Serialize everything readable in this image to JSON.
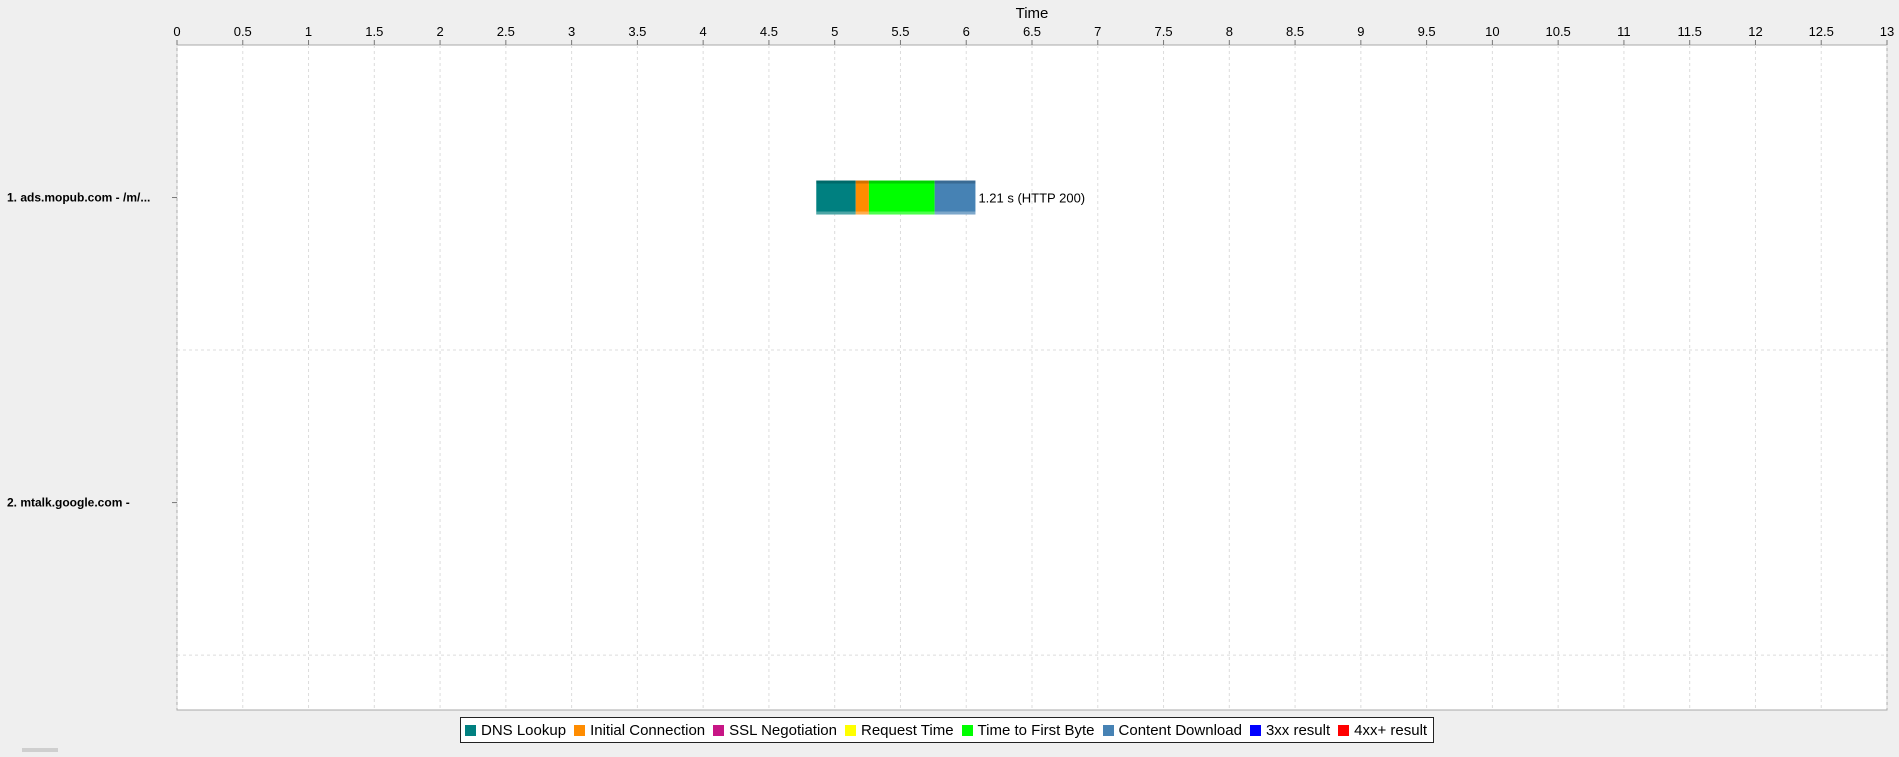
{
  "chart_data": {
    "type": "bar",
    "orientation": "horizontal",
    "subtype": "waterfall",
    "xlabel": "Time",
    "xlim": [
      0,
      13
    ],
    "xticks": [
      "0",
      "0.5",
      "1",
      "1.5",
      "2",
      "2.5",
      "3",
      "3.5",
      "4",
      "4.5",
      "5",
      "5.5",
      "6",
      "6.5",
      "7",
      "7.5",
      "8",
      "8.5",
      "9",
      "9.5",
      "10",
      "10.5",
      "11",
      "11.5",
      "12",
      "12.5",
      "13"
    ],
    "grid": true,
    "categories": [
      "1. ads.mopub.com - /m/...",
      "2. mtalk.google.com -"
    ],
    "requests": [
      {
        "label": "1. ads.mopub.com - /m/...",
        "segments": [
          {
            "phase": "DNS Lookup",
            "start": 4.86,
            "end": 5.16
          },
          {
            "phase": "Initial Connection",
            "start": 5.16,
            "end": 5.26
          },
          {
            "phase": "Time to First Byte",
            "start": 5.26,
            "end": 5.76
          },
          {
            "phase": "Content Download",
            "start": 5.76,
            "end": 6.07
          }
        ],
        "annotation": "1.21 s (HTTP 200)"
      },
      {
        "label": "2. mtalk.google.com -",
        "segments": [],
        "annotation": ""
      }
    ],
    "legend_position": "bottom",
    "legend": [
      {
        "name": "DNS Lookup",
        "color": "#008080"
      },
      {
        "name": "Initial Connection",
        "color": "#ff8c00"
      },
      {
        "name": "SSL Negotiation",
        "color": "#c71585"
      },
      {
        "name": "Request Time",
        "color": "#ffff00"
      },
      {
        "name": "Time to First Byte",
        "color": "#00ff00"
      },
      {
        "name": "Content Download",
        "color": "#4682b4"
      },
      {
        "name": "3xx result",
        "color": "#0000ff"
      },
      {
        "name": "4xx+ result",
        "color": "#ff0000"
      }
    ]
  }
}
